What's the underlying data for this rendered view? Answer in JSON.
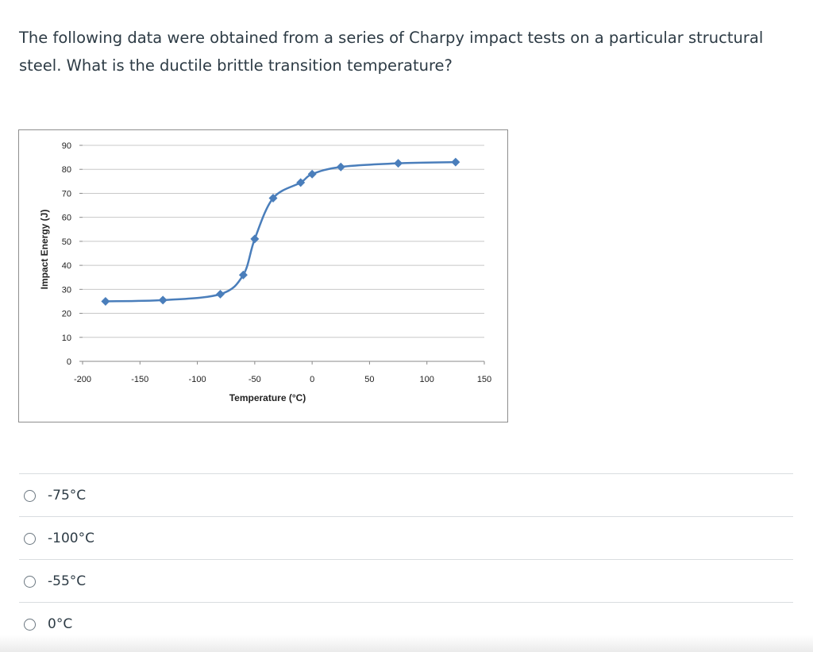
{
  "question": {
    "text": "The following data were obtained from a series of Charpy impact tests on a particular structural steel. What is the ductile brittle transition temperature?"
  },
  "chart_data": {
    "type": "scatter",
    "title": "",
    "xlabel": "Temperature (°C)",
    "ylabel": "Impact Energy (J)",
    "xlim": [
      -200,
      150
    ],
    "ylim": [
      0,
      90
    ],
    "x_ticks": [
      -200,
      -150,
      -100,
      -50,
      0,
      50,
      100,
      150
    ],
    "y_ticks": [
      0,
      10,
      20,
      30,
      40,
      50,
      60,
      70,
      80,
      90
    ],
    "grid": true,
    "legend": "none",
    "series": [
      {
        "x": [
          -180,
          -130,
          -80,
          -60,
          -50,
          -34,
          -10,
          0,
          25,
          75,
          125
        ],
        "y": [
          25,
          25.5,
          28,
          36,
          51,
          68,
          74.5,
          78,
          81,
          82.5,
          83
        ],
        "color": "#4a7ebb",
        "marker": "diamond",
        "smooth": true
      }
    ]
  },
  "answers": [
    {
      "label": "-75°C"
    },
    {
      "label": "-100°C"
    },
    {
      "label": "-55°C"
    },
    {
      "label": "0°C"
    }
  ]
}
